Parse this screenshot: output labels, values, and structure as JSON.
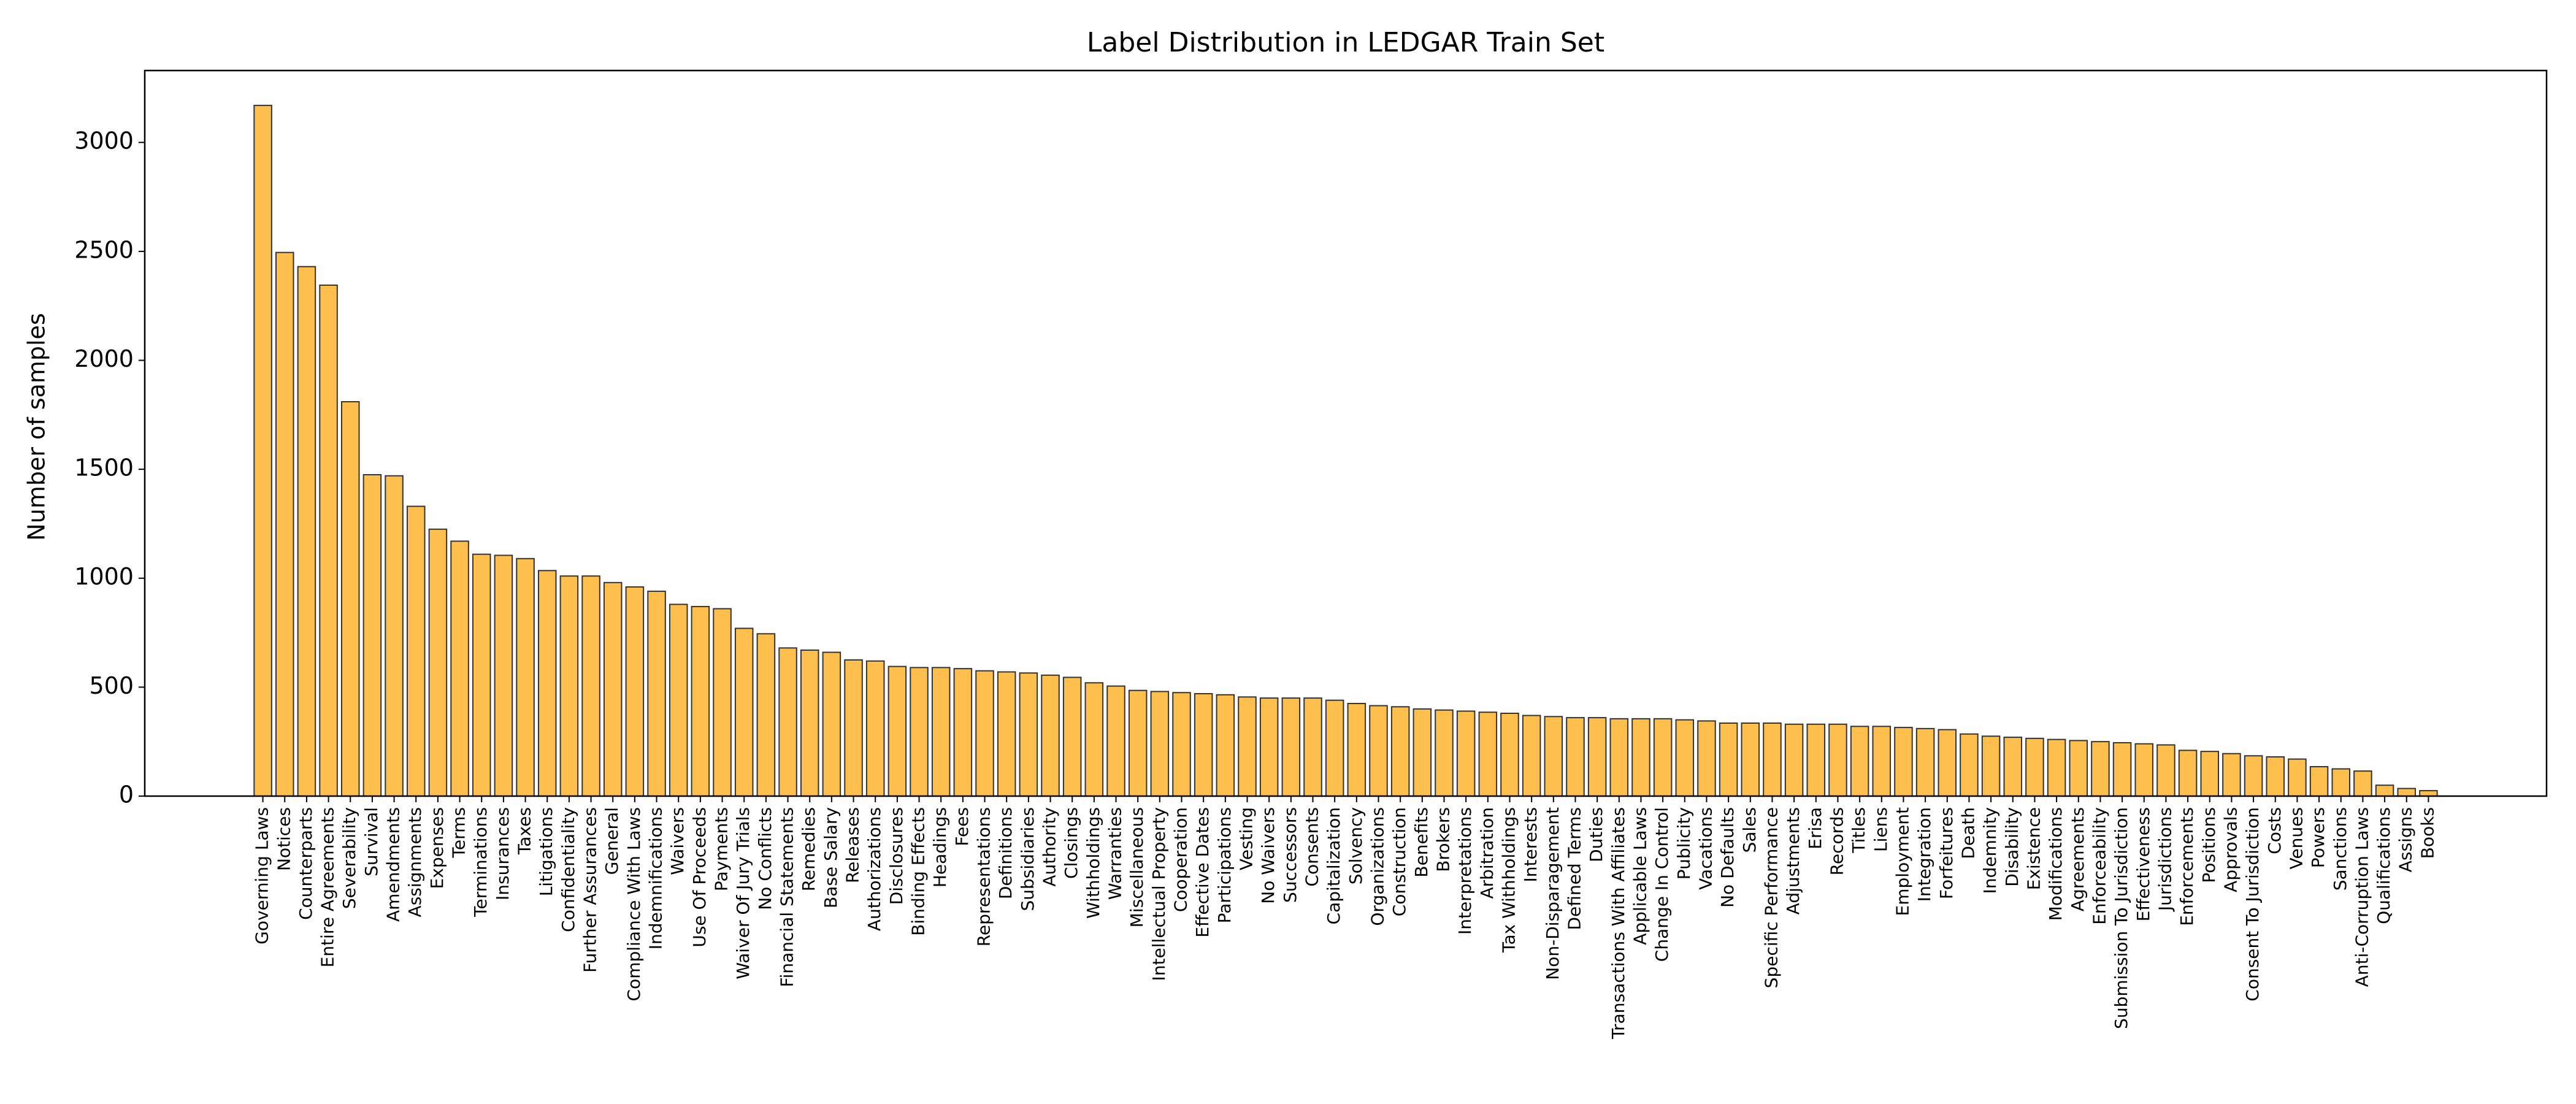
{
  "chart_data": {
    "type": "bar",
    "title": "Label Distribution in LEDGAR Train Set",
    "y_label": "Number of samples",
    "color": "#ffbf4d",
    "edgecolor": "#333333",
    "categories": [
      "Governing Laws",
      "Notices",
      "Counterparts",
      "Entire Agreements",
      "Severability",
      "Survival",
      "Amendments",
      "Assignments",
      "Expenses",
      "Terms",
      "Terminations",
      "Insurances",
      "Taxes",
      "Litigations",
      "Confidentiality",
      "Further Assurances",
      "General",
      "Compliance With Laws",
      "Indemnifications",
      "Waivers",
      "Use Of Proceeds",
      "Payments",
      "Waiver Of Jury Trials",
      "No Conflicts",
      "Financial Statements",
      "Remedies",
      "Base Salary",
      "Releases",
      "Authorizations",
      "Disclosures",
      "Binding Effects",
      "Headings",
      "Fees",
      "Representations",
      "Definitions",
      "Subsidiaries",
      "Authority",
      "Closings",
      "Withholdings",
      "Warranties",
      "Miscellaneous",
      "Intellectual Property",
      "Cooperation",
      "Effective Dates",
      "Participations",
      "Vesting",
      "No Waivers",
      "Successors",
      "Consents",
      "Capitalization",
      "Solvency",
      "Organizations",
      "Construction",
      "Benefits",
      "Brokers",
      "Interpretations",
      "Arbitration",
      "Tax Withholdings",
      "Interests",
      "Non-Disparagement",
      "Defined Terms",
      "Duties",
      "Transactions With Affiliates",
      "Applicable Laws",
      "Change In Control",
      "Publicity",
      "Vacations",
      "No Defaults",
      "Sales",
      "Specific Performance",
      "Adjustments",
      "Erisa",
      "Records",
      "Titles",
      "Liens",
      "Employment",
      "Integration",
      "Forfeitures",
      "Death",
      "Indemnity",
      "Disability",
      "Existence",
      "Modifications",
      "Agreements",
      "Enforceability",
      "Submission To Jurisdiction",
      "Effectiveness",
      "Jurisdictions",
      "Enforcements",
      "Positions",
      "Approvals",
      "Consent To Jurisdiction",
      "Costs",
      "Venues",
      "Powers",
      "Sanctions",
      "Anti-Corruption Laws",
      "Qualifications",
      "Assigns",
      "Books"
    ],
    "values": [
      3170,
      2495,
      2430,
      2345,
      1810,
      1475,
      1470,
      1330,
      1225,
      1170,
      1110,
      1105,
      1090,
      1035,
      1010,
      1010,
      980,
      960,
      940,
      880,
      870,
      860,
      770,
      745,
      680,
      670,
      660,
      625,
      620,
      595,
      590,
      590,
      585,
      575,
      570,
      565,
      555,
      545,
      520,
      505,
      485,
      480,
      475,
      470,
      465,
      455,
      450,
      450,
      450,
      440,
      425,
      415,
      410,
      400,
      395,
      390,
      385,
      380,
      370,
      365,
      360,
      360,
      355,
      355,
      355,
      350,
      345,
      335,
      335,
      335,
      330,
      330,
      330,
      320,
      320,
      315,
      310,
      305,
      285,
      275,
      270,
      265,
      260,
      255,
      250,
      245,
      240,
      235,
      210,
      205,
      195,
      185,
      180,
      170,
      135,
      125,
      115,
      50,
      35,
      25
    ],
    "ylim": [
      0,
      3330
    ],
    "yticks": [
      0,
      500,
      1000,
      1500,
      2000,
      2500,
      3000
    ]
  }
}
